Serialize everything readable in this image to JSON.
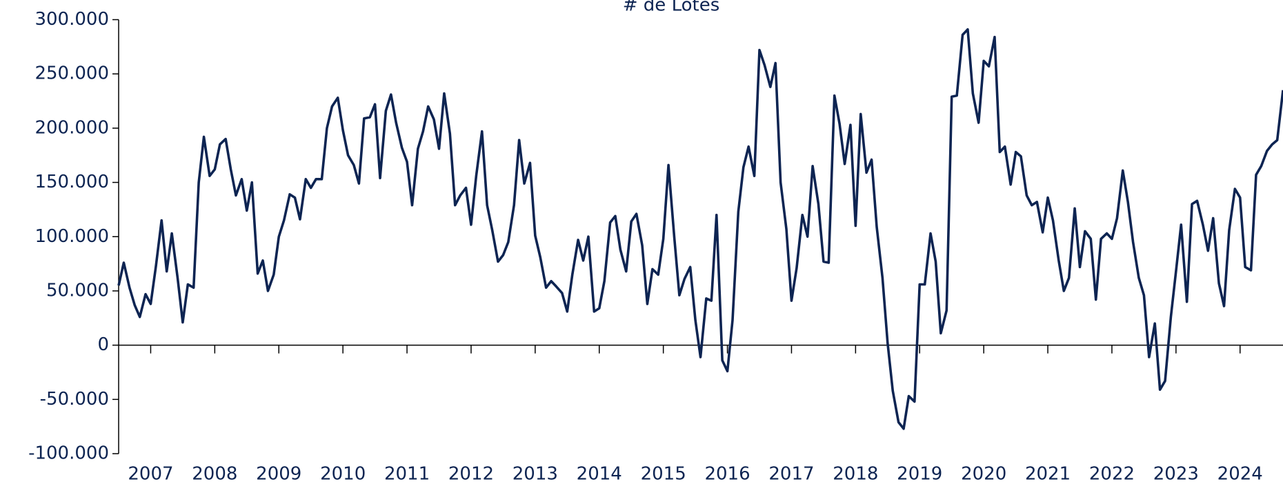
{
  "chart_data": {
    "type": "line",
    "title": "# de Lotes",
    "x": [
      2006.5,
      2006.58,
      2006.67,
      2006.75,
      2006.83,
      2006.92,
      2007,
      2007.08,
      2007.17,
      2007.25,
      2007.33,
      2007.42,
      2007.5,
      2007.58,
      2007.67,
      2007.75,
      2007.83,
      2007.92,
      2008,
      2008.08,
      2008.17,
      2008.25,
      2008.33,
      2008.42,
      2008.5,
      2008.58,
      2008.67,
      2008.75,
      2008.83,
      2008.92,
      2009,
      2009.08,
      2009.17,
      2009.25,
      2009.33,
      2009.42,
      2009.5,
      2009.58,
      2009.67,
      2009.75,
      2009.83,
      2009.92,
      2010,
      2010.08,
      2010.17,
      2010.25,
      2010.33,
      2010.42,
      2010.5,
      2010.58,
      2010.67,
      2010.75,
      2010.83,
      2010.92,
      2011,
      2011.08,
      2011.17,
      2011.25,
      2011.33,
      2011.42,
      2011.5,
      2011.58,
      2011.67,
      2011.75,
      2011.83,
      2011.92,
      2012,
      2012.08,
      2012.17,
      2012.25,
      2012.33,
      2012.42,
      2012.5,
      2012.58,
      2012.67,
      2012.75,
      2012.83,
      2012.92,
      2013,
      2013.08,
      2013.17,
      2013.25,
      2013.33,
      2013.42,
      2013.5,
      2013.58,
      2013.67,
      2013.75,
      2013.83,
      2013.92,
      2014,
      2014.08,
      2014.17,
      2014.25,
      2014.33,
      2014.42,
      2014.5,
      2014.58,
      2014.67,
      2014.75,
      2014.83,
      2014.92,
      2015,
      2015.08,
      2015.17,
      2015.25,
      2015.33,
      2015.42,
      2015.5,
      2015.58,
      2015.67,
      2015.75,
      2015.83,
      2015.92,
      2016,
      2016.08,
      2016.17,
      2016.25,
      2016.33,
      2016.42,
      2016.5,
      2016.58,
      2016.67,
      2016.75,
      2016.83,
      2016.92,
      2017,
      2017.08,
      2017.17,
      2017.25,
      2017.33,
      2017.42,
      2017.5,
      2017.58,
      2017.67,
      2017.75,
      2017.83,
      2017.92,
      2018,
      2018.08,
      2018.17,
      2018.25,
      2018.33,
      2018.42,
      2018.5,
      2018.58,
      2018.67,
      2018.75,
      2018.83,
      2018.92,
      2019,
      2019.08,
      2019.17,
      2019.25,
      2019.33,
      2019.42,
      2019.5,
      2019.58,
      2019.67,
      2019.75,
      2019.83,
      2019.92,
      2020,
      2020.08,
      2020.17,
      2020.25,
      2020.33,
      2020.42,
      2020.5,
      2020.58,
      2020.67,
      2020.75,
      2020.83,
      2020.92,
      2021,
      2021.08,
      2021.17,
      2021.25,
      2021.33,
      2021.42,
      2021.5,
      2021.58,
      2021.67,
      2021.75,
      2021.83,
      2021.92,
      2022,
      2022.08,
      2022.17,
      2022.25,
      2022.33,
      2022.42,
      2022.5,
      2022.58,
      2022.67,
      2022.75,
      2022.83,
      2022.92,
      2023,
      2023.08,
      2023.17,
      2023.25,
      2023.33,
      2023.42,
      2023.5,
      2023.58,
      2023.67,
      2023.75,
      2023.83,
      2023.92,
      2024,
      2024.08,
      2024.17,
      2024.25,
      2024.33,
      2024.42,
      2024.5,
      2024.58,
      2024.67
    ],
    "series": [
      {
        "color": "#0d2452",
        "values": [
          55000,
          76000,
          53000,
          37000,
          26000,
          47000,
          38000,
          72000,
          115000,
          68000,
          103000,
          62000,
          21000,
          56000,
          53000,
          150000,
          192000,
          156000,
          162000,
          185000,
          190000,
          162000,
          138000,
          153000,
          124000,
          150000,
          66000,
          78000,
          50000,
          65000,
          100000,
          115000,
          139000,
          136000,
          116000,
          153000,
          145000,
          153000,
          153000,
          200000,
          220000,
          228000,
          198000,
          175000,
          166000,
          149000,
          209000,
          210000,
          222000,
          154000,
          216000,
          231000,
          205000,
          182000,
          169000,
          129000,
          181000,
          197000,
          220000,
          208000,
          181000,
          232000,
          195000,
          129000,
          138000,
          145000,
          111000,
          156000,
          197000,
          129000,
          106000,
          77000,
          83000,
          95000,
          129000,
          189000,
          149000,
          168000,
          101000,
          81000,
          53000,
          59000,
          54000,
          48000,
          31000,
          65000,
          97000,
          78000,
          100000,
          31000,
          34000,
          59000,
          113000,
          119000,
          88000,
          68000,
          114000,
          121000,
          92000,
          38000,
          70000,
          65000,
          98000,
          166000,
          100000,
          46000,
          61000,
          72000,
          23000,
          -11000,
          43000,
          41000,
          120000,
          -14000,
          -24000,
          23000,
          123000,
          164000,
          183000,
          156000,
          272000,
          258000,
          238000,
          260000,
          150000,
          107000,
          41000,
          71000,
          120000,
          100000,
          165000,
          130000,
          77000,
          76000,
          230000,
          204000,
          167000,
          203000,
          110000,
          213000,
          159000,
          171000,
          109000,
          62000,
          2000,
          -42000,
          -71000,
          -77000,
          -47000,
          -52000,
          56000,
          56000,
          103000,
          77000,
          11000,
          32000,
          229000,
          230000,
          286000,
          291000,
          232000,
          205000,
          262000,
          257000,
          284000,
          178000,
          183000,
          148000,
          178000,
          174000,
          138000,
          129000,
          132000,
          104000,
          136000,
          115000,
          78000,
          50000,
          62000,
          126000,
          72000,
          105000,
          98000,
          42000,
          98000,
          103000,
          98000,
          117000,
          161000,
          132000,
          95000,
          62000,
          46000,
          -11000,
          20000,
          -41000,
          -33000,
          26000,
          68000,
          111000,
          40000,
          130000,
          133000,
          111000,
          87000,
          117000,
          57000,
          36000,
          106000,
          144000,
          136000,
          72000,
          69000,
          157000,
          165000,
          179000,
          185000,
          189000,
          235000
        ]
      }
    ],
    "xlim": [
      2006.5,
      2024.67
    ],
    "xticks": [
      2007,
      2008,
      2009,
      2010,
      2011,
      2012,
      2013,
      2014,
      2015,
      2016,
      2017,
      2018,
      2019,
      2020,
      2021,
      2022,
      2023,
      2024
    ],
    "ylim": [
      -100000,
      300000
    ],
    "yticks": [
      {
        "value": -100000,
        "label": "-100.000"
      },
      {
        "value": -50000,
        "label": "-50.000"
      },
      0,
      {
        "value": 50000,
        "label": "50.000"
      },
      {
        "value": 100000,
        "label": "100.000"
      },
      {
        "value": 150000,
        "label": "150.000"
      },
      {
        "value": 200000,
        "label": "200.000"
      },
      {
        "value": 250000,
        "label": "250.000"
      },
      {
        "value": 300000,
        "label": "300.000"
      }
    ]
  }
}
